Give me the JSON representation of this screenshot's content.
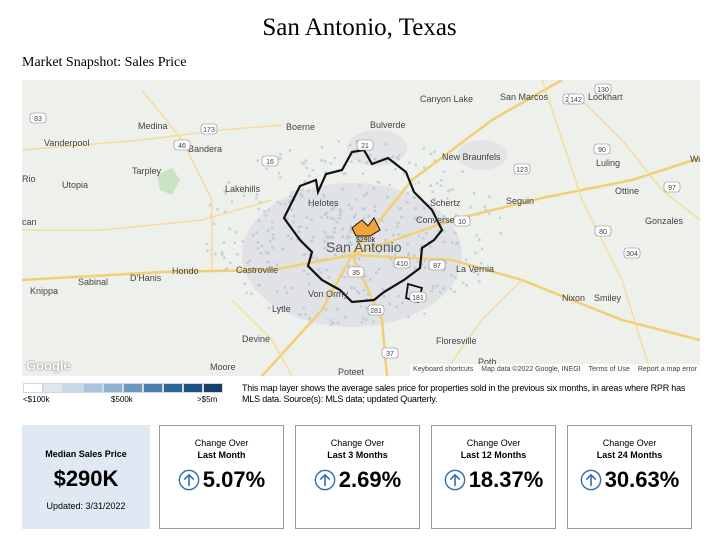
{
  "header": {
    "title": "San Antonio, Texas",
    "subtitle": "Market Snapshot: Sales Price"
  },
  "map": {
    "places": [
      "Canyon Lake",
      "San Marcos",
      "Lockhart",
      "Medina",
      "Boerne",
      "Bulverde",
      "Bandera",
      "Vanderpool",
      "New Braunfels",
      "Luling",
      "Tarpley",
      "Utopia",
      "Lakehills",
      "Schertz",
      "Seguin",
      "Ottine",
      "Gonzales",
      "Helotes",
      "San Antonio",
      "Converse",
      "Sabinal",
      "D'Hanis",
      "Hondo",
      "Castroville",
      "La Vernia",
      "Knippa",
      "Nixon",
      "Smiley",
      "Von Ormy",
      "Lytle",
      "Devine",
      "Floresville",
      "Moore",
      "Poteet",
      "Poth",
      "Rio",
      "Wa",
      "can"
    ],
    "price_marker": "$290k",
    "highways": [
      "130",
      "286",
      "83",
      "173",
      "142",
      "46",
      "16",
      "21",
      "90",
      "123",
      "10",
      "80",
      "97",
      "304",
      "181",
      "87",
      "35",
      "410",
      "37",
      "281"
    ],
    "google_logo": "Google",
    "footer_links": [
      "Keyboard shortcuts",
      "Map data ©2022 Google, INEGI",
      "Terms of Use",
      "Report a map error"
    ]
  },
  "legend": {
    "min_label": "<$100k",
    "mid_label": "$500k",
    "max_label": ">$5m",
    "colors": [
      "#ffffff",
      "#dde8f0",
      "#c6d9e8",
      "#a9c5dd",
      "#8db2d2",
      "#6b98c0",
      "#4b7fae",
      "#2e6598",
      "#1d4f82",
      "#163f6b"
    ],
    "description": "This map layer shows the average sales price for properties sold in the previous six months, in areas where RPR has MLS data. Source(s): MLS data; updated Quarterly."
  },
  "median": {
    "label": "Median Sales Price",
    "value": "$290K",
    "updated": "Updated: 3/31/2022"
  },
  "changes": [
    {
      "line1": "Change Over",
      "line2": "Last Month",
      "value": "5.07%",
      "direction": "up",
      "percent": 5.07
    },
    {
      "line1": "Change Over",
      "line2": "Last 3 Months",
      "value": "2.69%",
      "direction": "up",
      "percent": 2.69
    },
    {
      "line1": "Change Over",
      "line2": "Last 12 Months",
      "value": "18.37%",
      "direction": "up",
      "percent": 18.37
    },
    {
      "line1": "Change Over",
      "line2": "Last 24 Months",
      "value": "30.63%",
      "direction": "up",
      "percent": 30.63
    }
  ],
  "arrow_color": "#3a6fb0"
}
